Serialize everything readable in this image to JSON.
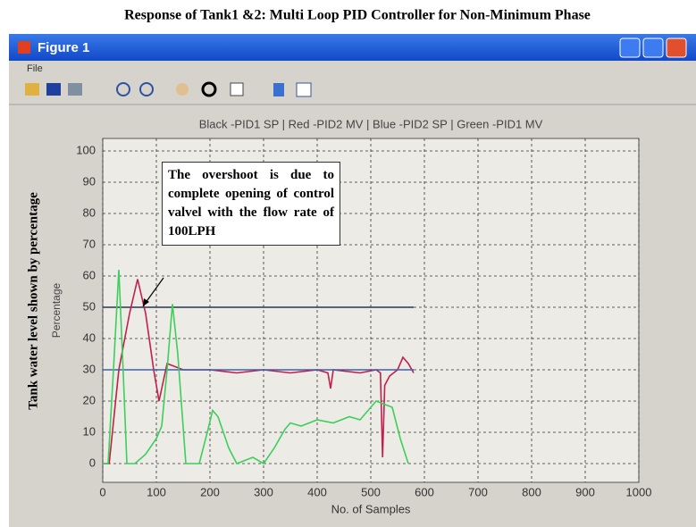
{
  "caption": "Response of Tank1 &2: Multi Loop PID Controller for Non-Minimum Phase",
  "window": {
    "title": "Figure 1",
    "menu": [
      "File"
    ]
  },
  "side_note": "Tank water level shown by percentage",
  "box_note": "The overshoot is due to complete opening of control valvel with the flow rate of 100LPH",
  "chart_data": {
    "type": "line",
    "title": "Black -PID1 SP | Red -PID2 MV | Blue -PID2 SP | Green -PID1 MV",
    "xlabel": "No. of Samples",
    "ylabel": "Percentage",
    "xlim": [
      0,
      1000
    ],
    "xticks": [
      0,
      100,
      200,
      300,
      400,
      500,
      600,
      700,
      800,
      900,
      1000
    ],
    "ylim": [
      -6,
      104
    ],
    "yticks": [
      0,
      10,
      20,
      30,
      40,
      50,
      60,
      70,
      80,
      90,
      100
    ],
    "grid": true,
    "series": [
      {
        "color": "#2a3550",
        "x": [
          0,
          580
        ],
        "values": [
          50,
          50
        ]
      },
      {
        "color": "#c0204a",
        "x": [
          0,
          12,
          30,
          50,
          65,
          80,
          95,
          105,
          115,
          120,
          150,
          200,
          250,
          300,
          350,
          400,
          420,
          425,
          430,
          480,
          510,
          518,
          522,
          526,
          535,
          550,
          560,
          570,
          580
        ],
        "values": [
          0,
          0,
          30,
          48,
          59,
          48,
          30,
          20,
          28,
          32,
          30,
          30,
          29,
          30,
          29,
          30,
          29,
          24,
          30,
          29,
          30,
          29,
          2,
          25,
          28,
          30,
          34,
          32,
          29
        ]
      },
      {
        "color": "#3d5fb0",
        "x": [
          0,
          580
        ],
        "values": [
          30,
          30
        ]
      },
      {
        "color": "#3ccf5a",
        "x": [
          0,
          10,
          20,
          30,
          38,
          45,
          60,
          80,
          100,
          110,
          120,
          130,
          140,
          155,
          180,
          195,
          205,
          215,
          235,
          250,
          265,
          280,
          300,
          320,
          340,
          350,
          370,
          400,
          430,
          460,
          480,
          500,
          510,
          525,
          540,
          555,
          570
        ],
        "values": [
          0,
          0,
          30,
          62,
          30,
          0,
          0,
          3,
          8,
          12,
          30,
          51,
          35,
          0,
          0,
          10,
          17,
          15,
          5,
          0,
          1,
          2,
          0,
          5,
          11,
          13,
          12,
          14,
          13,
          15,
          14,
          18,
          20,
          19,
          18,
          8,
          0
        ]
      }
    ]
  }
}
